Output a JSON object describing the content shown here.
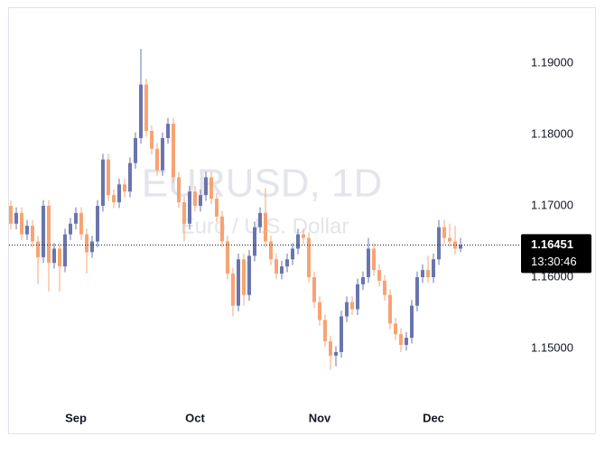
{
  "chart_data": {
    "type": "candlestick",
    "watermark_title": "EURUSD, 1D",
    "watermark_subtitle": "Euro / U.S. Dollar",
    "countdown": "13:30:46",
    "up_color": "#6a75ad",
    "down_color": "#f7a474",
    "ylim": [
      1.14165,
      1.19759
    ],
    "yticks": [
      {
        "value": 1.15,
        "label": "1.15000"
      },
      {
        "value": 1.16,
        "label": "1.16000"
      },
      {
        "value": 1.17,
        "label": "1.17000"
      },
      {
        "value": 1.18,
        "label": "1.18000"
      },
      {
        "value": 1.19,
        "label": "1.19000"
      }
    ],
    "categories": [
      null,
      null,
      null,
      null,
      null,
      null,
      null,
      null,
      null,
      null,
      null,
      null,
      "Sep",
      null,
      null,
      null,
      null,
      null,
      null,
      null,
      null,
      null,
      null,
      null,
      null,
      null,
      null,
      null,
      null,
      null,
      null,
      null,
      null,
      null,
      "Oct",
      null,
      null,
      null,
      null,
      null,
      null,
      null,
      null,
      null,
      null,
      null,
      null,
      null,
      null,
      null,
      null,
      null,
      null,
      null,
      null,
      null,
      null,
      "Nov",
      null,
      null,
      null,
      null,
      null,
      null,
      null,
      null,
      null,
      null,
      null,
      null,
      null,
      null,
      null,
      null,
      null,
      null,
      null,
      null,
      "Dec",
      null,
      null,
      null,
      null,
      null
    ],
    "open": [
      1.17,
      1.1675,
      1.169,
      1.166,
      1.1672,
      1.165,
      1.1628,
      1.17,
      1.162,
      1.164,
      1.1615,
      1.166,
      1.1675,
      1.169,
      1.166,
      1.1635,
      1.165,
      1.17,
      1.1765,
      1.1715,
      1.1705,
      1.173,
      1.172,
      1.176,
      1.1795,
      1.187,
      1.1805,
      1.178,
      1.175,
      1.1795,
      1.1815,
      1.174,
      1.1705,
      1.1675,
      1.172,
      1.17,
      1.1715,
      1.174,
      1.171,
      1.1685,
      1.165,
      1.1605,
      1.156,
      1.1625,
      1.1575,
      1.163,
      1.167,
      1.169,
      1.165,
      1.1625,
      1.1605,
      1.1615,
      1.1625,
      1.164,
      1.166,
      1.1655,
      1.16,
      1.1565,
      1.154,
      1.151,
      1.149,
      1.1495,
      1.1545,
      1.1565,
      1.1555,
      1.159,
      1.16,
      1.164,
      1.161,
      1.1595,
      1.1575,
      1.1535,
      1.152,
      1.1505,
      1.1515,
      1.156,
      1.16,
      1.161,
      1.16,
      1.1625,
      1.167,
      1.1655,
      1.165,
      1.164
    ],
    "high": [
      1.1708,
      1.1698,
      1.1698,
      1.168,
      1.168,
      1.1658,
      1.1708,
      1.1708,
      1.1648,
      1.1648,
      1.1668,
      1.1683,
      1.1698,
      1.1698,
      1.1668,
      1.1658,
      1.1708,
      1.1773,
      1.1773,
      1.1723,
      1.1738,
      1.1738,
      1.1768,
      1.1803,
      1.192,
      1.1878,
      1.1813,
      1.1788,
      1.1803,
      1.1823,
      1.1823,
      1.1748,
      1.1713,
      1.1728,
      1.1728,
      1.1723,
      1.1748,
      1.1748,
      1.1718,
      1.1693,
      1.1658,
      1.1613,
      1.1633,
      1.1633,
      1.1638,
      1.1678,
      1.1698,
      1.1725,
      1.1658,
      1.1633,
      1.1623,
      1.1633,
      1.1648,
      1.1668,
      1.1668,
      1.1663,
      1.1608,
      1.1573,
      1.1548,
      1.1518,
      1.1503,
      1.1553,
      1.1573,
      1.1573,
      1.1598,
      1.1608,
      1.1655,
      1.1648,
      1.1618,
      1.1603,
      1.1583,
      1.1543,
      1.1528,
      1.1523,
      1.1568,
      1.1608,
      1.1618,
      1.163,
      1.1633,
      1.168,
      1.168,
      1.1675,
      1.1672,
      1.1655
    ],
    "low": [
      1.1667,
      1.1667,
      1.1652,
      1.1652,
      1.1642,
      1.159,
      1.162,
      1.158,
      1.1612,
      1.158,
      1.1607,
      1.1652,
      1.1667,
      1.1652,
      1.1605,
      1.1627,
      1.1642,
      1.1692,
      1.1707,
      1.1697,
      1.1697,
      1.1712,
      1.1712,
      1.1752,
      1.1787,
      1.1797,
      1.1772,
      1.1742,
      1.1742,
      1.1787,
      1.1732,
      1.1697,
      1.165,
      1.1667,
      1.1692,
      1.1692,
      1.1707,
      1.1702,
      1.1677,
      1.1642,
      1.1597,
      1.1545,
      1.1552,
      1.156,
      1.1567,
      1.1622,
      1.1662,
      1.1642,
      1.1617,
      1.1597,
      1.1597,
      1.1607,
      1.1617,
      1.1632,
      1.1647,
      1.1592,
      1.1557,
      1.1532,
      1.1502,
      1.147,
      1.1475,
      1.1487,
      1.1537,
      1.1547,
      1.1547,
      1.1582,
      1.1592,
      1.1602,
      1.1587,
      1.1567,
      1.1527,
      1.1512,
      1.1495,
      1.1497,
      1.1507,
      1.1552,
      1.1592,
      1.1592,
      1.1592,
      1.1617,
      1.1647,
      1.1642,
      1.1632,
      1.1635
    ],
    "close": [
      1.1675,
      1.169,
      1.166,
      1.1672,
      1.165,
      1.1628,
      1.17,
      1.162,
      1.164,
      1.1615,
      1.166,
      1.1675,
      1.169,
      1.166,
      1.1635,
      1.165,
      1.17,
      1.1765,
      1.1715,
      1.1705,
      1.173,
      1.172,
      1.176,
      1.1795,
      1.187,
      1.1805,
      1.178,
      1.175,
      1.1795,
      1.1815,
      1.174,
      1.1705,
      1.1675,
      1.172,
      1.17,
      1.1715,
      1.174,
      1.171,
      1.1685,
      1.165,
      1.1605,
      1.156,
      1.1625,
      1.1575,
      1.163,
      1.167,
      1.169,
      1.165,
      1.1625,
      1.1605,
      1.1615,
      1.1625,
      1.164,
      1.166,
      1.1655,
      1.16,
      1.1565,
      1.154,
      1.151,
      1.149,
      1.1495,
      1.1545,
      1.1565,
      1.1555,
      1.159,
      1.16,
      1.164,
      1.161,
      1.1595,
      1.1575,
      1.1535,
      1.152,
      1.1505,
      1.1515,
      1.156,
      1.16,
      1.161,
      1.16,
      1.1625,
      1.167,
      1.1655,
      1.165,
      1.164,
      1.16451
    ]
  }
}
